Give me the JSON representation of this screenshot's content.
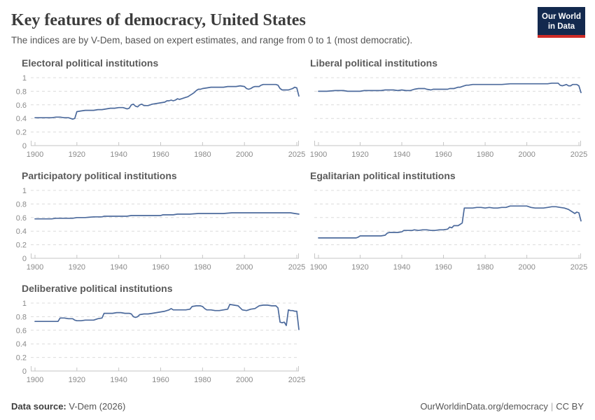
{
  "header": {
    "title": "Key features of democracy, United States",
    "subtitle": "The indices are by V-Dem, based on expert estimates, and range from 0 to 1 (most democratic)."
  },
  "logo": {
    "line1": "Our World",
    "line2": "in Data"
  },
  "footer": {
    "source_label": "Data source:",
    "source": " V-Dem (2026)",
    "url": "OurWorldinData.org/democracy",
    "divider": "|",
    "license": "CC BY"
  },
  "colors": {
    "line": "#4c6a9c",
    "grid": "#dcdcdc",
    "axis": "#c6c6c6",
    "tick_label": "#8a8a8a",
    "facet_title": "#5a5a5a",
    "logo_bg": "#13294e",
    "logo_red": "#cf2b26"
  },
  "axis": {
    "x_ticks": [
      1900,
      1920,
      1940,
      1960,
      1980,
      2000,
      2025
    ],
    "y_ticks": [
      1,
      0.8,
      0.6,
      0.4,
      0.2,
      0
    ],
    "x_domain": [
      1898,
      2026
    ],
    "y_domain": [
      0,
      1
    ],
    "grid": "dashed-horizontal",
    "legend": "none"
  },
  "chart_data": [
    {
      "type": "line",
      "title": "Electoral political institutions",
      "show_y_labels": true,
      "series": [
        [
          1900,
          0.41
        ],
        [
          1904,
          0.41
        ],
        [
          1908,
          0.41
        ],
        [
          1910,
          0.42
        ],
        [
          1912,
          0.42
        ],
        [
          1914,
          0.41
        ],
        [
          1916,
          0.41
        ],
        [
          1917,
          0.4
        ],
        [
          1918,
          0.39
        ],
        [
          1919,
          0.4
        ],
        [
          1920,
          0.5
        ],
        [
          1922,
          0.51
        ],
        [
          1924,
          0.52
        ],
        [
          1926,
          0.52
        ],
        [
          1928,
          0.52
        ],
        [
          1930,
          0.53
        ],
        [
          1932,
          0.53
        ],
        [
          1934,
          0.54
        ],
        [
          1936,
          0.55
        ],
        [
          1938,
          0.55
        ],
        [
          1940,
          0.56
        ],
        [
          1942,
          0.56
        ],
        [
          1943,
          0.55
        ],
        [
          1944,
          0.54
        ],
        [
          1945,
          0.55
        ],
        [
          1946,
          0.6
        ],
        [
          1947,
          0.61
        ],
        [
          1948,
          0.58
        ],
        [
          1949,
          0.57
        ],
        [
          1950,
          0.6
        ],
        [
          1951,
          0.61
        ],
        [
          1952,
          0.59
        ],
        [
          1954,
          0.59
        ],
        [
          1956,
          0.61
        ],
        [
          1958,
          0.62
        ],
        [
          1960,
          0.63
        ],
        [
          1962,
          0.64
        ],
        [
          1963,
          0.66
        ],
        [
          1964,
          0.66
        ],
        [
          1965,
          0.67
        ],
        [
          1966,
          0.66
        ],
        [
          1967,
          0.67
        ],
        [
          1968,
          0.69
        ],
        [
          1969,
          0.68
        ],
        [
          1970,
          0.69
        ],
        [
          1971,
          0.7
        ],
        [
          1972,
          0.71
        ],
        [
          1973,
          0.72
        ],
        [
          1974,
          0.74
        ],
        [
          1975,
          0.76
        ],
        [
          1976,
          0.78
        ],
        [
          1977,
          0.81
        ],
        [
          1978,
          0.83
        ],
        [
          1979,
          0.83
        ],
        [
          1980,
          0.84
        ],
        [
          1982,
          0.85
        ],
        [
          1984,
          0.86
        ],
        [
          1986,
          0.86
        ],
        [
          1988,
          0.86
        ],
        [
          1990,
          0.86
        ],
        [
          1992,
          0.87
        ],
        [
          1994,
          0.87
        ],
        [
          1996,
          0.87
        ],
        [
          1998,
          0.88
        ],
        [
          2000,
          0.87
        ],
        [
          2001,
          0.84
        ],
        [
          2002,
          0.83
        ],
        [
          2003,
          0.84
        ],
        [
          2004,
          0.86
        ],
        [
          2005,
          0.87
        ],
        [
          2006,
          0.87
        ],
        [
          2007,
          0.87
        ],
        [
          2008,
          0.89
        ],
        [
          2009,
          0.9
        ],
        [
          2011,
          0.9
        ],
        [
          2013,
          0.9
        ],
        [
          2015,
          0.9
        ],
        [
          2016,
          0.89
        ],
        [
          2017,
          0.84
        ],
        [
          2018,
          0.82
        ],
        [
          2019,
          0.82
        ],
        [
          2020,
          0.82
        ],
        [
          2021,
          0.82
        ],
        [
          2022,
          0.83
        ],
        [
          2023,
          0.84
        ],
        [
          2024,
          0.86
        ],
        [
          2025,
          0.85
        ],
        [
          2026,
          0.73
        ]
      ]
    },
    {
      "type": "line",
      "title": "Liberal political institutions",
      "show_y_labels": false,
      "series": [
        [
          1900,
          0.8
        ],
        [
          1904,
          0.8
        ],
        [
          1908,
          0.81
        ],
        [
          1910,
          0.81
        ],
        [
          1912,
          0.81
        ],
        [
          1914,
          0.8
        ],
        [
          1916,
          0.8
        ],
        [
          1918,
          0.8
        ],
        [
          1920,
          0.8
        ],
        [
          1922,
          0.81
        ],
        [
          1924,
          0.81
        ],
        [
          1926,
          0.81
        ],
        [
          1928,
          0.81
        ],
        [
          1930,
          0.81
        ],
        [
          1932,
          0.82
        ],
        [
          1934,
          0.82
        ],
        [
          1936,
          0.82
        ],
        [
          1938,
          0.81
        ],
        [
          1940,
          0.82
        ],
        [
          1942,
          0.81
        ],
        [
          1944,
          0.81
        ],
        [
          1946,
          0.83
        ],
        [
          1948,
          0.84
        ],
        [
          1950,
          0.84
        ],
        [
          1951,
          0.84
        ],
        [
          1952,
          0.83
        ],
        [
          1954,
          0.82
        ],
        [
          1955,
          0.83
        ],
        [
          1956,
          0.83
        ],
        [
          1958,
          0.83
        ],
        [
          1960,
          0.83
        ],
        [
          1962,
          0.83
        ],
        [
          1963,
          0.84
        ],
        [
          1964,
          0.84
        ],
        [
          1965,
          0.84
        ],
        [
          1966,
          0.85
        ],
        [
          1967,
          0.86
        ],
        [
          1968,
          0.86
        ],
        [
          1969,
          0.87
        ],
        [
          1970,
          0.88
        ],
        [
          1971,
          0.89
        ],
        [
          1972,
          0.89
        ],
        [
          1974,
          0.9
        ],
        [
          1976,
          0.9
        ],
        [
          1978,
          0.9
        ],
        [
          1980,
          0.9
        ],
        [
          1984,
          0.9
        ],
        [
          1988,
          0.9
        ],
        [
          1992,
          0.91
        ],
        [
          1996,
          0.91
        ],
        [
          2000,
          0.91
        ],
        [
          2004,
          0.91
        ],
        [
          2008,
          0.91
        ],
        [
          2010,
          0.91
        ],
        [
          2012,
          0.92
        ],
        [
          2014,
          0.92
        ],
        [
          2015,
          0.92
        ],
        [
          2016,
          0.89
        ],
        [
          2017,
          0.88
        ],
        [
          2018,
          0.89
        ],
        [
          2019,
          0.9
        ],
        [
          2020,
          0.88
        ],
        [
          2021,
          0.88
        ],
        [
          2022,
          0.9
        ],
        [
          2023,
          0.9
        ],
        [
          2024,
          0.9
        ],
        [
          2025,
          0.88
        ],
        [
          2026,
          0.78
        ]
      ]
    },
    {
      "type": "line",
      "title": "Participatory political institutions",
      "show_y_labels": true,
      "series": [
        [
          1900,
          0.58
        ],
        [
          1904,
          0.58
        ],
        [
          1908,
          0.58
        ],
        [
          1910,
          0.59
        ],
        [
          1912,
          0.59
        ],
        [
          1914,
          0.59
        ],
        [
          1916,
          0.59
        ],
        [
          1918,
          0.59
        ],
        [
          1920,
          0.6
        ],
        [
          1924,
          0.6
        ],
        [
          1928,
          0.61
        ],
        [
          1930,
          0.61
        ],
        [
          1932,
          0.61
        ],
        [
          1933,
          0.62
        ],
        [
          1936,
          0.62
        ],
        [
          1940,
          0.62
        ],
        [
          1944,
          0.62
        ],
        [
          1946,
          0.63
        ],
        [
          1950,
          0.63
        ],
        [
          1954,
          0.63
        ],
        [
          1958,
          0.63
        ],
        [
          1960,
          0.63
        ],
        [
          1961,
          0.64
        ],
        [
          1964,
          0.64
        ],
        [
          1966,
          0.64
        ],
        [
          1968,
          0.65
        ],
        [
          1970,
          0.65
        ],
        [
          1974,
          0.65
        ],
        [
          1978,
          0.66
        ],
        [
          1982,
          0.66
        ],
        [
          1986,
          0.66
        ],
        [
          1990,
          0.66
        ],
        [
          1994,
          0.67
        ],
        [
          1998,
          0.67
        ],
        [
          2002,
          0.67
        ],
        [
          2006,
          0.67
        ],
        [
          2010,
          0.67
        ],
        [
          2014,
          0.67
        ],
        [
          2018,
          0.67
        ],
        [
          2020,
          0.67
        ],
        [
          2022,
          0.67
        ],
        [
          2024,
          0.66
        ],
        [
          2026,
          0.65
        ]
      ]
    },
    {
      "type": "line",
      "title": "Egalitarian political institutions",
      "show_y_labels": false,
      "series": [
        [
          1900,
          0.3
        ],
        [
          1904,
          0.3
        ],
        [
          1908,
          0.3
        ],
        [
          1912,
          0.3
        ],
        [
          1916,
          0.3
        ],
        [
          1918,
          0.3
        ],
        [
          1919,
          0.31
        ],
        [
          1920,
          0.33
        ],
        [
          1924,
          0.33
        ],
        [
          1928,
          0.33
        ],
        [
          1930,
          0.33
        ],
        [
          1932,
          0.34
        ],
        [
          1933,
          0.37
        ],
        [
          1934,
          0.38
        ],
        [
          1936,
          0.38
        ],
        [
          1938,
          0.38
        ],
        [
          1940,
          0.39
        ],
        [
          1941,
          0.41
        ],
        [
          1943,
          0.41
        ],
        [
          1945,
          0.41
        ],
        [
          1946,
          0.42
        ],
        [
          1948,
          0.41
        ],
        [
          1950,
          0.42
        ],
        [
          1952,
          0.42
        ],
        [
          1954,
          0.41
        ],
        [
          1956,
          0.41
        ],
        [
          1958,
          0.42
        ],
        [
          1960,
          0.42
        ],
        [
          1962,
          0.43
        ],
        [
          1963,
          0.46
        ],
        [
          1964,
          0.45
        ],
        [
          1965,
          0.48
        ],
        [
          1966,
          0.48
        ],
        [
          1967,
          0.48
        ],
        [
          1968,
          0.5
        ],
        [
          1969,
          0.52
        ],
        [
          1970,
          0.74
        ],
        [
          1972,
          0.74
        ],
        [
          1974,
          0.74
        ],
        [
          1976,
          0.75
        ],
        [
          1978,
          0.75
        ],
        [
          1980,
          0.74
        ],
        [
          1982,
          0.75
        ],
        [
          1984,
          0.74
        ],
        [
          1986,
          0.74
        ],
        [
          1988,
          0.75
        ],
        [
          1990,
          0.75
        ],
        [
          1992,
          0.77
        ],
        [
          1994,
          0.77
        ],
        [
          1996,
          0.77
        ],
        [
          1998,
          0.77
        ],
        [
          2000,
          0.77
        ],
        [
          2002,
          0.75
        ],
        [
          2004,
          0.74
        ],
        [
          2006,
          0.74
        ],
        [
          2008,
          0.74
        ],
        [
          2010,
          0.75
        ],
        [
          2012,
          0.76
        ],
        [
          2014,
          0.76
        ],
        [
          2016,
          0.75
        ],
        [
          2018,
          0.74
        ],
        [
          2020,
          0.72
        ],
        [
          2021,
          0.7
        ],
        [
          2022,
          0.68
        ],
        [
          2023,
          0.66
        ],
        [
          2024,
          0.68
        ],
        [
          2025,
          0.67
        ],
        [
          2026,
          0.55
        ]
      ]
    },
    {
      "type": "line",
      "title": "Deliberative political institutions",
      "show_y_labels": true,
      "series": [
        [
          1900,
          0.73
        ],
        [
          1904,
          0.73
        ],
        [
          1908,
          0.73
        ],
        [
          1911,
          0.73
        ],
        [
          1912,
          0.78
        ],
        [
          1914,
          0.78
        ],
        [
          1916,
          0.77
        ],
        [
          1918,
          0.77
        ],
        [
          1919,
          0.75
        ],
        [
          1920,
          0.74
        ],
        [
          1922,
          0.74
        ],
        [
          1924,
          0.75
        ],
        [
          1926,
          0.75
        ],
        [
          1928,
          0.75
        ],
        [
          1930,
          0.77
        ],
        [
          1932,
          0.78
        ],
        [
          1933,
          0.85
        ],
        [
          1935,
          0.85
        ],
        [
          1937,
          0.85
        ],
        [
          1939,
          0.86
        ],
        [
          1941,
          0.86
        ],
        [
          1943,
          0.85
        ],
        [
          1945,
          0.85
        ],
        [
          1946,
          0.84
        ],
        [
          1947,
          0.8
        ],
        [
          1948,
          0.79
        ],
        [
          1949,
          0.8
        ],
        [
          1950,
          0.83
        ],
        [
          1952,
          0.84
        ],
        [
          1954,
          0.84
        ],
        [
          1956,
          0.85
        ],
        [
          1958,
          0.86
        ],
        [
          1960,
          0.87
        ],
        [
          1962,
          0.88
        ],
        [
          1964,
          0.9
        ],
        [
          1965,
          0.92
        ],
        [
          1966,
          0.9
        ],
        [
          1968,
          0.9
        ],
        [
          1970,
          0.9
        ],
        [
          1972,
          0.9
        ],
        [
          1974,
          0.91
        ],
        [
          1975,
          0.95
        ],
        [
          1977,
          0.96
        ],
        [
          1979,
          0.96
        ],
        [
          1980,
          0.95
        ],
        [
          1981,
          0.92
        ],
        [
          1982,
          0.9
        ],
        [
          1984,
          0.9
        ],
        [
          1986,
          0.89
        ],
        [
          1988,
          0.89
        ],
        [
          1990,
          0.9
        ],
        [
          1992,
          0.91
        ],
        [
          1993,
          0.98
        ],
        [
          1995,
          0.97
        ],
        [
          1997,
          0.96
        ],
        [
          1998,
          0.93
        ],
        [
          1999,
          0.9
        ],
        [
          2001,
          0.89
        ],
        [
          2003,
          0.91
        ],
        [
          2005,
          0.92
        ],
        [
          2007,
          0.96
        ],
        [
          2009,
          0.97
        ],
        [
          2011,
          0.97
        ],
        [
          2013,
          0.96
        ],
        [
          2015,
          0.96
        ],
        [
          2016,
          0.93
        ],
        [
          2017,
          0.72
        ],
        [
          2018,
          0.71
        ],
        [
          2019,
          0.72
        ],
        [
          2020,
          0.67
        ],
        [
          2021,
          0.9
        ],
        [
          2022,
          0.89
        ],
        [
          2023,
          0.89
        ],
        [
          2024,
          0.88
        ],
        [
          2025,
          0.88
        ],
        [
          2026,
          0.61
        ]
      ]
    }
  ]
}
